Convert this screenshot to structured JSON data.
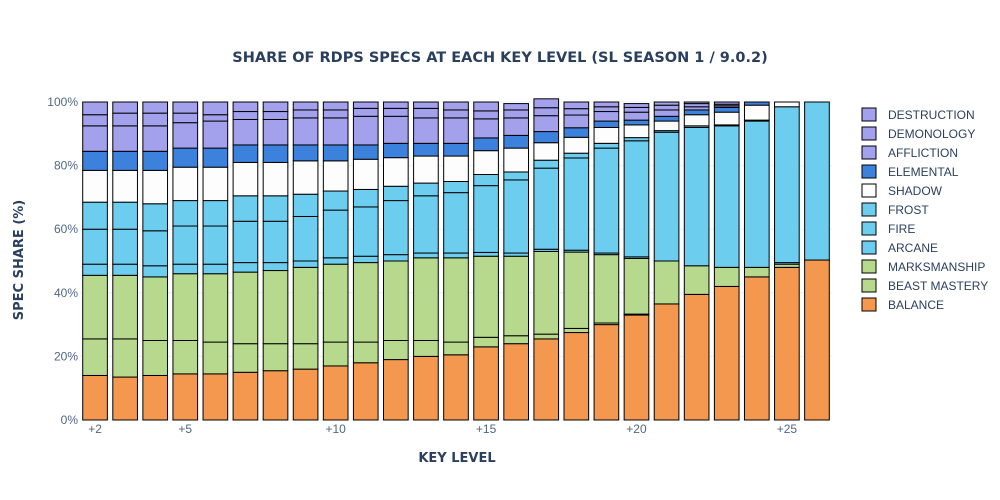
{
  "chart_data": {
    "type": "bar",
    "stacked": true,
    "title": "SHARE OF RDPS SPECS AT EACH KEY LEVEL (SL SEASON 1 / 9.0.2)",
    "xlabel": "KEY LEVEL",
    "ylabel": "SPEC SHARE (%)",
    "categories": [
      "+2",
      "+3",
      "+4",
      "+5",
      "+6",
      "+7",
      "+8",
      "+9",
      "+10",
      "+11",
      "+12",
      "+13",
      "+14",
      "+15",
      "+16",
      "+17",
      "+18",
      "+19",
      "+20",
      "+21",
      "+22",
      "+23",
      "+24",
      "+25",
      "+26"
    ],
    "x_tick_labels": [
      "+2",
      "+5",
      "+10",
      "+15",
      "+20",
      "+25"
    ],
    "y_tick_labels": [
      "0%",
      "20%",
      "40%",
      "60%",
      "80%",
      "100%"
    ],
    "ylim": [
      0,
      100
    ],
    "legend_position": "right",
    "series": [
      {
        "name": "BALANCE",
        "color": "#f4984f",
        "values": [
          14,
          13.5,
          14,
          14.5,
          14.5,
          15,
          15.5,
          16,
          17,
          18,
          19,
          20,
          20.5,
          23,
          24,
          25.5,
          27.5,
          30,
          33,
          36.5,
          39.5,
          42,
          45,
          48,
          50.3
        ]
      },
      {
        "name": "BEAST MASTERY",
        "color": "#b6d98e",
        "values": [
          11.5,
          12,
          11,
          10.5,
          10,
          9,
          8.5,
          8,
          7.5,
          6.5,
          6,
          5,
          4,
          3,
          2.5,
          1.5,
          1.3,
          0.5,
          0.3,
          0,
          0,
          0,
          0,
          0,
          0
        ]
      },
      {
        "name": "MARKSMANSHIP",
        "color": "#b6d98e",
        "values": [
          20,
          20,
          20,
          21,
          21.5,
          22.5,
          23,
          24,
          24.5,
          25,
          25,
          26,
          26.5,
          25.5,
          25,
          26,
          24,
          21.5,
          17.5,
          13.5,
          9,
          6,
          3,
          1,
          0
        ]
      },
      {
        "name": "ARCANE",
        "color": "#6ccdee",
        "values": [
          3.5,
          3.5,
          3.5,
          3,
          3,
          3,
          2.5,
          2,
          2,
          2,
          2,
          1.5,
          1.5,
          1.2,
          1,
          0.7,
          0.6,
          0.5,
          0.5,
          0,
          0,
          0,
          0,
          0.5,
          0
        ]
      },
      {
        "name": "FIRE",
        "color": "#6ccdee",
        "values": [
          11,
          11,
          11,
          12,
          12,
          13,
          13,
          14,
          15,
          15.5,
          17,
          18,
          19,
          21,
          23,
          25.5,
          29,
          33,
          36.5,
          40.5,
          43.5,
          44.5,
          46,
          49,
          49.7
        ]
      },
      {
        "name": "FROST",
        "color": "#6ccdee",
        "values": [
          8.5,
          8.5,
          8.5,
          8,
          8,
          8,
          8,
          7,
          6,
          5.5,
          4.5,
          4,
          3.5,
          3.5,
          2.5,
          2.5,
          1.5,
          1.5,
          1,
          0.5,
          0.5,
          0.3,
          0.3,
          0,
          0
        ]
      },
      {
        "name": "SHADOW",
        "color": "#fdfdfe",
        "values": [
          10,
          10,
          10.5,
          10.5,
          10.5,
          10.5,
          10.5,
          10.5,
          9.5,
          9.5,
          9,
          8.5,
          8,
          7.5,
          7.5,
          5.5,
          5,
          5,
          4,
          3,
          3.5,
          4,
          4.7,
          1.5,
          0
        ]
      },
      {
        "name": "ELEMENTAL",
        "color": "#3c82dd",
        "values": [
          6,
          6,
          6,
          6,
          6,
          5.5,
          5.5,
          5,
          5,
          4.5,
          4.5,
          4,
          4,
          4,
          4,
          3.5,
          3,
          2,
          1.5,
          1.5,
          1.5,
          1.5,
          1,
          0,
          0
        ]
      },
      {
        "name": "AFFLICTION",
        "color": "#a3a0ec",
        "values": [
          8,
          8,
          8,
          8,
          8.5,
          8,
          8,
          8.5,
          8.5,
          9,
          8.5,
          8,
          8,
          6,
          5.5,
          5,
          4,
          3,
          2.5,
          2,
          1,
          0.5,
          0,
          0,
          0
        ]
      },
      {
        "name": "DEMONOLOGY",
        "color": "#a3a0ec",
        "values": [
          3.5,
          4,
          4,
          3,
          2,
          2.5,
          2.5,
          2.5,
          2.5,
          2.5,
          2.5,
          3,
          2.5,
          2.5,
          2.5,
          2.5,
          2,
          1.5,
          1.5,
          1.5,
          1,
          0.5,
          0,
          0,
          0
        ]
      },
      {
        "name": "DESTRUCTION",
        "color": "#a3a0ec",
        "values": [
          4,
          3.5,
          3.5,
          3.5,
          4,
          3,
          3,
          2.5,
          2.5,
          2,
          2,
          2,
          2.5,
          2.8,
          2,
          2.8,
          2.1,
          1.5,
          1.2,
          1,
          0.5,
          0.7,
          0,
          0,
          0
        ]
      }
    ]
  }
}
